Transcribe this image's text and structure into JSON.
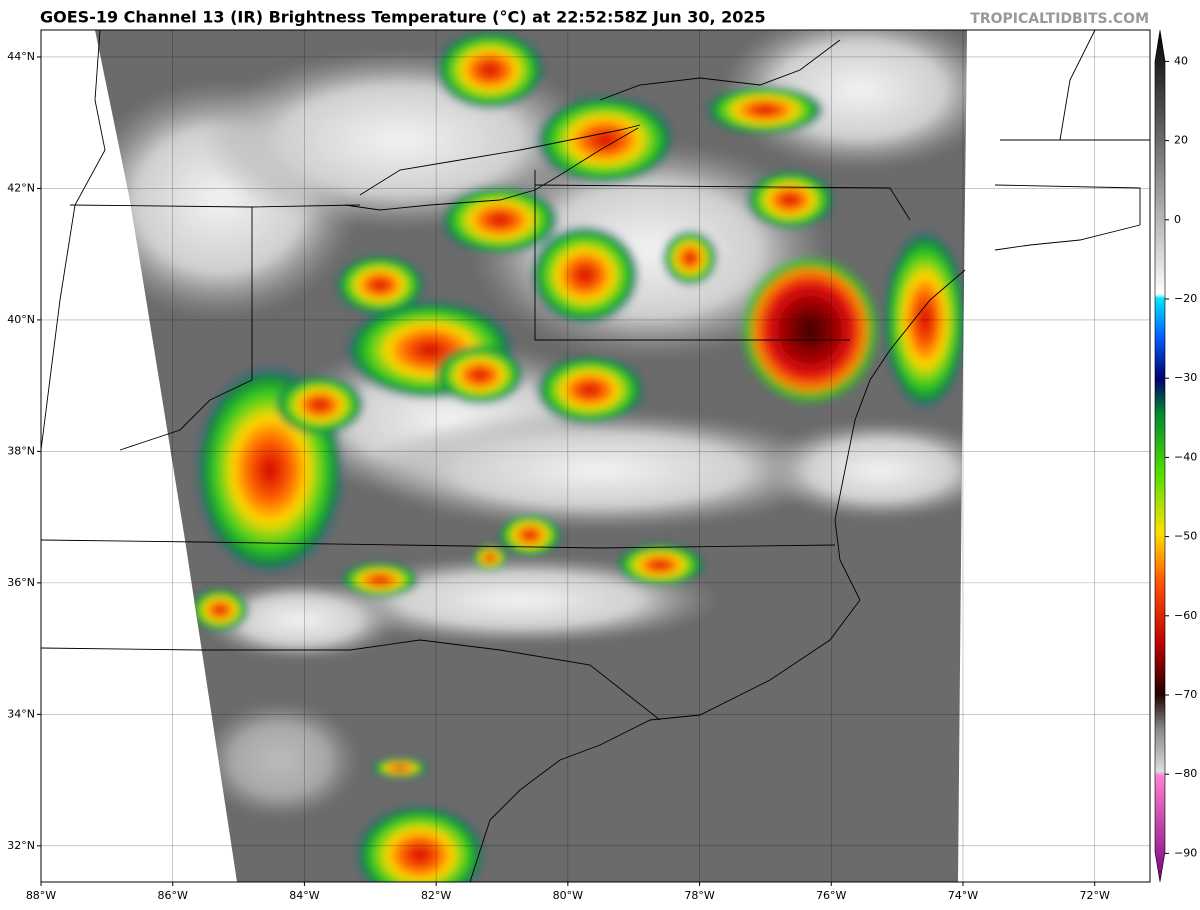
{
  "map": {
    "title": "GOES-19 Channel 13 (IR) Brightness Temperature (°C) at 22:52:58Z Jun 30, 2025",
    "watermark": "TROPICALTIDBITS.COM",
    "xlim": [
      -88,
      -71.16
    ],
    "ylim": [
      31.45,
      44.41
    ],
    "xticks": [
      {
        "value": -88,
        "label": "88°W"
      },
      {
        "value": -86,
        "label": "86°W"
      },
      {
        "value": -84,
        "label": "84°W"
      },
      {
        "value": -82,
        "label": "82°W"
      },
      {
        "value": -80,
        "label": "80°W"
      },
      {
        "value": -78,
        "label": "78°W"
      },
      {
        "value": -76,
        "label": "76°W"
      },
      {
        "value": -74,
        "label": "74°W"
      },
      {
        "value": -72,
        "label": "72°W"
      }
    ],
    "yticks": [
      {
        "value": 44,
        "label": "44°N"
      },
      {
        "value": 42,
        "label": "42°N"
      },
      {
        "value": 40,
        "label": "40°N"
      },
      {
        "value": 38,
        "label": "38°N"
      },
      {
        "value": 36,
        "label": "36°N"
      },
      {
        "value": 34,
        "label": "34°N"
      },
      {
        "value": 32,
        "label": "32°N"
      }
    ],
    "colorbar": {
      "ticks": [
        40,
        20,
        0,
        {
          "value": -20,
          "label": "−20"
        },
        {
          "value": -30,
          "label": "−30"
        },
        {
          "value": -40,
          "label": "−40"
        },
        {
          "value": -50,
          "label": "−50"
        },
        {
          "value": -60,
          "label": "−60"
        },
        {
          "value": -70,
          "label": "−70"
        },
        {
          "value": -80,
          "label": "−80"
        },
        {
          "value": -90,
          "label": "−90"
        }
      ]
    }
  }
}
